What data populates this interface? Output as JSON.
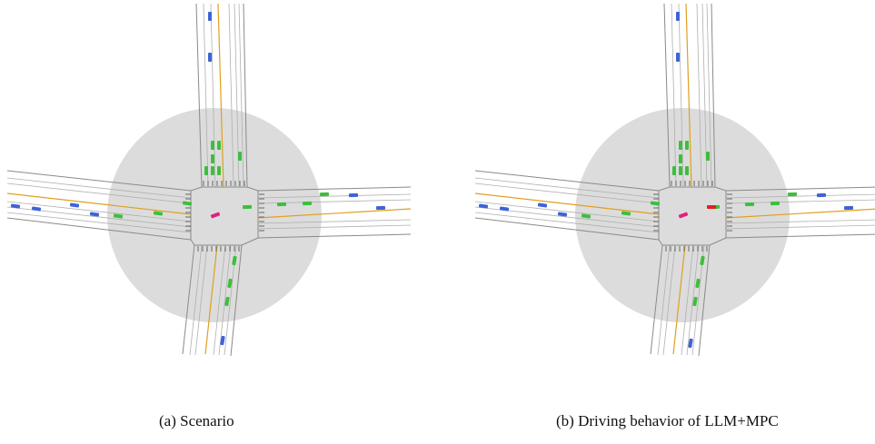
{
  "figure": {
    "panels": [
      {
        "id": "a",
        "caption": "(a) Scenario",
        "vehicles": [
          {
            "role": "background",
            "color": "blue"
          },
          {
            "role": "background",
            "color": "blue"
          },
          {
            "role": "background",
            "color": "blue"
          },
          {
            "role": "background",
            "color": "blue"
          },
          {
            "role": "background",
            "color": "blue"
          },
          {
            "role": "background",
            "color": "blue"
          },
          {
            "role": "background",
            "color": "blue"
          },
          {
            "role": "background",
            "color": "blue"
          },
          {
            "role": "background",
            "color": "blue"
          },
          {
            "role": "in-range",
            "color": "green",
            "count": 17
          },
          {
            "role": "ego",
            "color": "magenta"
          }
        ]
      },
      {
        "id": "b",
        "caption": "(b) Driving behavior of LLM+MPC",
        "vehicles": [
          {
            "role": "background",
            "color": "blue"
          },
          {
            "role": "in-range",
            "color": "green"
          },
          {
            "role": "ego",
            "color": "magenta"
          },
          {
            "role": "highlighted",
            "color": "red"
          }
        ]
      }
    ]
  },
  "colors": {
    "range_circle": "#dcdcdc",
    "road_edge": "#8a8a8a",
    "lane_line": "#b0b0b0",
    "center_line": "#e0a020",
    "vehicle_blue": "#3d63d6",
    "vehicle_green": "#3cbf3c",
    "vehicle_ego": "#e0217f",
    "vehicle_red": "#e02020"
  }
}
